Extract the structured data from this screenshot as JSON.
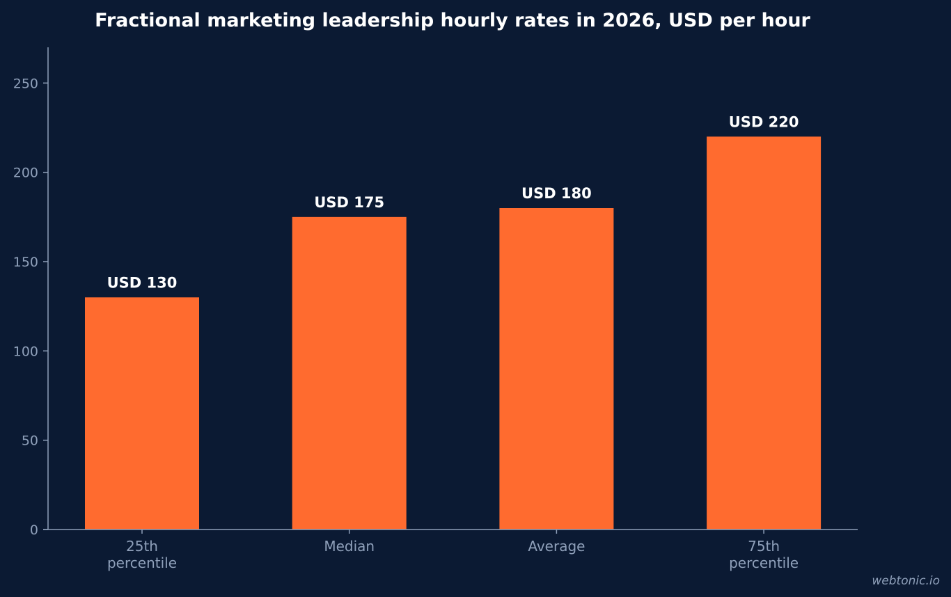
{
  "chart_data": {
    "type": "bar",
    "title": "Fractional marketing leadership hourly rates in 2026, USD per hour",
    "categories": [
      [
        "25th",
        "percentile"
      ],
      [
        "Median"
      ],
      [
        "Average"
      ],
      [
        "75th",
        "percentile"
      ]
    ],
    "values": [
      130,
      175,
      180,
      220
    ],
    "data_labels": [
      "USD 130",
      "USD 175",
      "USD 180",
      "USD 220"
    ],
    "ylim": [
      0,
      270
    ],
    "yticks": [
      0,
      50,
      100,
      150,
      200,
      250
    ],
    "xlabel": "",
    "ylabel": "",
    "grid": false,
    "bar_color": "#ff6b2f",
    "background": "#0b1a33",
    "axis_color": "#8fa0ba"
  },
  "watermark": "webtonic.io"
}
